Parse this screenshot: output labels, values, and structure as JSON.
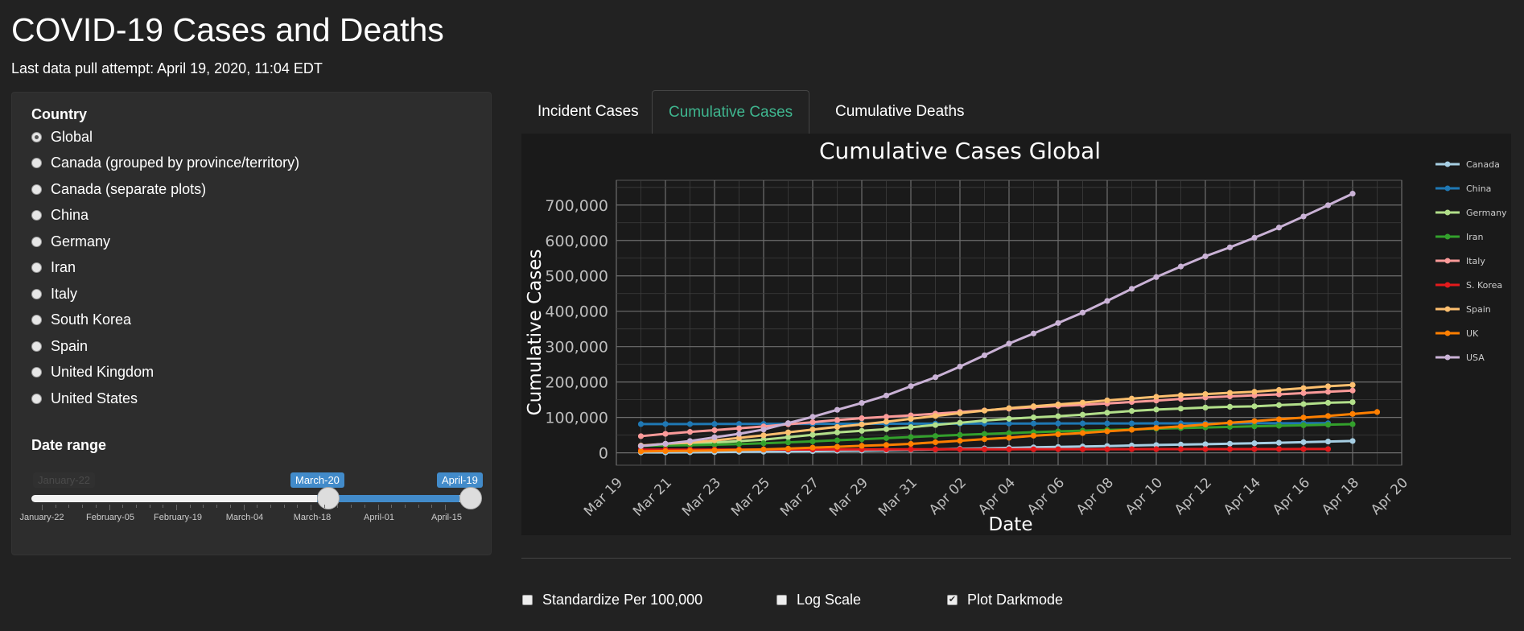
{
  "app_title": "COVID-19 Cases and Deaths",
  "last_pull": "Last data pull attempt: April 19, 2020, 11:04 EDT",
  "sidebar": {
    "country_label": "Country",
    "countries": [
      {
        "label": "Global",
        "checked": true
      },
      {
        "label": "Canada (grouped by province/territory)",
        "checked": false
      },
      {
        "label": "Canada (separate plots)",
        "checked": false
      },
      {
        "label": "China",
        "checked": false
      },
      {
        "label": "Germany",
        "checked": false
      },
      {
        "label": "Iran",
        "checked": false
      },
      {
        "label": "Italy",
        "checked": false
      },
      {
        "label": "South Korea",
        "checked": false
      },
      {
        "label": "Spain",
        "checked": false
      },
      {
        "label": "United Kingdom",
        "checked": false
      },
      {
        "label": "United States",
        "checked": false
      }
    ],
    "date_range_label": "Date range",
    "slider": {
      "min_label_ghost": "January-22",
      "from_label": "March-20",
      "to_label": "April-19",
      "ticks": [
        "January-22",
        "February-05",
        "February-19",
        "March-04",
        "March-18",
        "April-01",
        "April-15"
      ]
    }
  },
  "tabs": [
    {
      "label": "Incident Cases",
      "active": false
    },
    {
      "label": "Cumulative Cases",
      "active": true
    },
    {
      "label": "Cumulative Deaths",
      "active": false
    }
  ],
  "options": [
    {
      "label": "Standardize Per 100,000",
      "checked": false
    },
    {
      "label": "Log Scale",
      "checked": false
    },
    {
      "label": "Plot Darkmode",
      "checked": true
    }
  ],
  "chart_data": {
    "type": "line",
    "title": "Cumulative Cases Global",
    "xlabel": "Date",
    "ylabel": "Cumulative Cases",
    "x_start": "2020-03-20",
    "ylim": [
      -35000,
      770000
    ],
    "y_ticks": [
      0,
      100000,
      200000,
      300000,
      400000,
      500000,
      600000,
      700000
    ],
    "y_tick_labels": [
      "0",
      "100,000",
      "200,000",
      "300,000",
      "400,000",
      "500,000",
      "600,000",
      "700,000"
    ],
    "x_tick_labels": [
      "Mar 19",
      "Mar 21",
      "Mar 23",
      "Mar 25",
      "Mar 27",
      "Mar 29",
      "Mar 31",
      "Apr 02",
      "Apr 04",
      "Apr 06",
      "Apr 08",
      "Apr 10",
      "Apr 12",
      "Apr 14",
      "Apr 16",
      "Apr 18",
      "Apr 20"
    ],
    "grid": true,
    "legend_position": "right",
    "series": [
      {
        "name": "Canada",
        "color": "#a6cee3",
        "values": [
          1000,
          1100,
          1500,
          2000,
          2800,
          3300,
          4000,
          4700,
          5700,
          6300,
          7400,
          8500,
          9600,
          11300,
          12500,
          13900,
          15500,
          16600,
          17900,
          19100,
          20700,
          22000,
          23300,
          24300,
          25700,
          27000,
          28400,
          30100,
          31900,
          33400
        ]
      },
      {
        "name": "China",
        "color": "#1f78b4",
        "values": [
          81200,
          81300,
          81400,
          81500,
          81600,
          81700,
          81800,
          81900,
          82000,
          82100,
          82200,
          82300,
          82400,
          82500,
          82600,
          82700,
          82800,
          82900,
          82950,
          83000,
          83100,
          83150,
          83200,
          83300,
          83350,
          83400,
          83500,
          83600,
          83700
        ]
      },
      {
        "name": "Germany",
        "color": "#b2df8a",
        "values": [
          19800,
          22200,
          24800,
          29100,
          32900,
          37300,
          43900,
          50900,
          57700,
          62100,
          66900,
          72400,
          78600,
          84800,
          91200,
          96100,
          100100,
          103400,
          107700,
          113300,
          118200,
          122200,
          124900,
          127800,
          130100,
          131400,
          134700,
          137600,
          141400,
          143300
        ]
      },
      {
        "name": "Iran",
        "color": "#33a02c",
        "values": [
          19600,
          20600,
          21600,
          23000,
          24800,
          27000,
          29400,
          32300,
          35400,
          38300,
          41500,
          44600,
          47600,
          50500,
          53200,
          55700,
          58200,
          60500,
          62600,
          64600,
          66200,
          68200,
          70000,
          71700,
          73300,
          74900,
          76400,
          77900,
          79500,
          80900
        ]
      },
      {
        "name": "Italy",
        "color": "#fb9a99",
        "values": [
          47000,
          53600,
          59100,
          63900,
          69200,
          74400,
          80600,
          86500,
          92500,
          97700,
          101700,
          105800,
          110600,
          115200,
          119800,
          124600,
          128900,
          132500,
          135600,
          139400,
          143600,
          147600,
          152300,
          156400,
          159500,
          162500,
          165200,
          168900,
          172400,
          175900
        ]
      },
      {
        "name": "S. Korea",
        "color": "#e31a1c",
        "values": [
          8650,
          8800,
          8900,
          9000,
          9100,
          9200,
          9300,
          9400,
          9500,
          9600,
          9700,
          9800,
          9850,
          9900,
          10000,
          10050,
          10100,
          10200,
          10250,
          10300,
          10350,
          10400,
          10450,
          10500,
          10550,
          10600,
          10610,
          10630,
          10650
        ]
      },
      {
        "name": "Spain",
        "color": "#fdbf6f",
        "values": [
          20400,
          25400,
          28600,
          35100,
          42100,
          49500,
          57800,
          65700,
          73200,
          80100,
          87900,
          95900,
          104100,
          112100,
          119200,
          126200,
          131600,
          136700,
          141900,
          148200,
          153200,
          158300,
          163000,
          166000,
          169500,
          172500,
          177600,
          182800,
          188000,
          191700
        ]
      },
      {
        "name": "UK",
        "color": "#ff7f00",
        "values": [
          4000,
          5000,
          5700,
          6700,
          8100,
          9600,
          11800,
          14600,
          17100,
          19800,
          22200,
          25200,
          29900,
          34200,
          38700,
          42500,
          48400,
          52300,
          55900,
          60700,
          65100,
          70300,
          74600,
          79900,
          85000,
          89600,
          94800,
          99500,
          104100,
          109800,
          115300
        ]
      },
      {
        "name": "USA",
        "color": "#cab2d6",
        "values": [
          19100,
          25500,
          33300,
          43800,
          53700,
          65800,
          83800,
          101700,
          121500,
          140900,
          161800,
          188200,
          213400,
          243600,
          275600,
          308800,
          337100,
          366700,
          396200,
          429100,
          463400,
          496500,
          526400,
          555300,
          580600,
          607700,
          636400,
          667800,
          699700,
          732200
        ]
      }
    ]
  }
}
